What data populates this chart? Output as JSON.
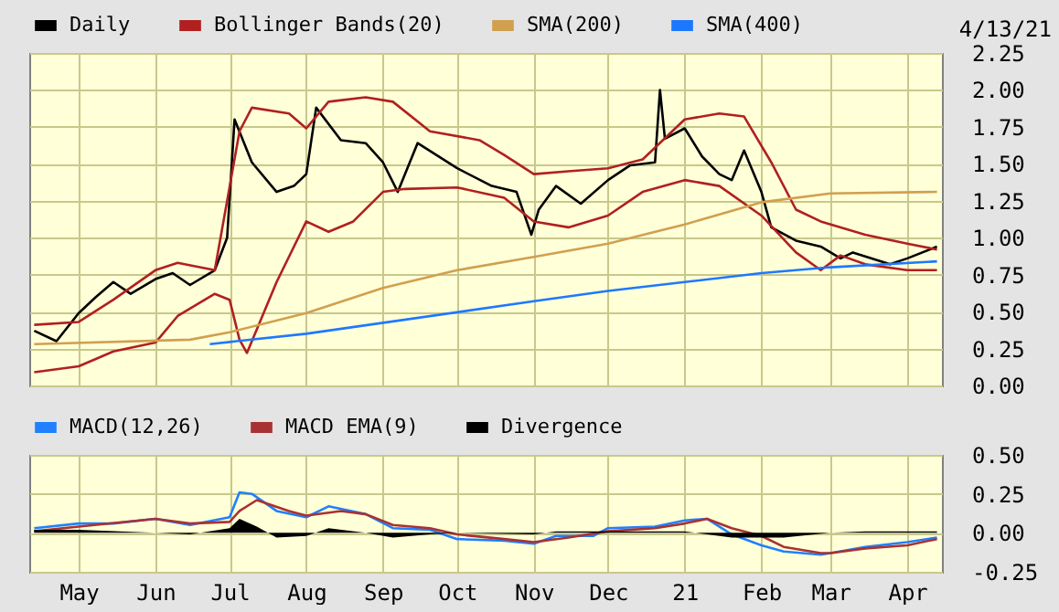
{
  "chart_data": [
    {
      "type": "line",
      "annotations": [
        "4/13/21"
      ],
      "legend": "top",
      "grid": true,
      "tick_labels": "y",
      "xlim": [
        "2020-04-11",
        "2021-04-15"
      ],
      "xticks": [
        {
          "value": "2020-05-01",
          "label": null
        },
        {
          "value": "2020-06-01",
          "label": null
        },
        {
          "value": "2020-07-01",
          "label": null
        },
        {
          "value": "2020-08-01",
          "label": null
        },
        {
          "value": "2020-09-01",
          "label": null
        },
        {
          "value": "2020-10-01",
          "label": null
        },
        {
          "value": "2020-11-01",
          "label": null
        },
        {
          "value": "2020-12-01",
          "label": null
        },
        {
          "value": "2021-01-01",
          "label": null
        },
        {
          "value": "2021-02-01",
          "label": null
        },
        {
          "value": "2021-03-01",
          "label": null
        },
        {
          "value": "2021-04-01",
          "label": null
        }
      ],
      "ylim": [
        0,
        2.25
      ],
      "yticks": [
        {
          "value": 0,
          "label": "0.00"
        },
        {
          "value": 0.25,
          "label": "0.25"
        },
        {
          "value": 0.5,
          "label": "0.50"
        },
        {
          "value": 0.75,
          "label": "0.75"
        },
        {
          "value": 1,
          "label": "1.00"
        },
        {
          "value": 1.25,
          "label": "1.25"
        },
        {
          "value": 1.5,
          "label": "1.50"
        },
        {
          "value": 1.75,
          "label": "1.75"
        },
        {
          "value": 2,
          "label": "2.00"
        },
        {
          "value": 2.25,
          "label": "2.25"
        }
      ],
      "series": [
        {
          "name": "Daily",
          "color": "#000000",
          "x": [
            "2020-04-13",
            "2020-04-22",
            "2020-05-01",
            "2020-05-08",
            "2020-05-15",
            "2020-05-22",
            "2020-06-01",
            "2020-06-08",
            "2020-06-15",
            "2020-06-25",
            "2020-06-30",
            "2020-07-03",
            "2020-07-10",
            "2020-07-20",
            "2020-07-27",
            "2020-08-01",
            "2020-08-05",
            "2020-08-15",
            "2020-08-25",
            "2020-09-01",
            "2020-09-07",
            "2020-09-15",
            "2020-10-01",
            "2020-10-15",
            "2020-10-25",
            "2020-10-31",
            "2020-11-03",
            "2020-11-10",
            "2020-11-20",
            "2020-12-01",
            "2020-12-10",
            "2020-12-20",
            "2020-12-22",
            "2020-12-24",
            "2021-01-01",
            "2021-01-08",
            "2021-01-15",
            "2021-01-20",
            "2021-01-25",
            "2021-02-01",
            "2021-02-05",
            "2021-02-15",
            "2021-02-25",
            "2021-03-05",
            "2021-03-10",
            "2021-03-25",
            "2021-04-01",
            "2021-04-13"
          ],
          "values": [
            0.37,
            0.3,
            0.49,
            0.6,
            0.7,
            0.62,
            0.72,
            0.76,
            0.68,
            0.78,
            1.0,
            1.8,
            1.51,
            1.31,
            1.35,
            1.43,
            1.88,
            1.66,
            1.64,
            1.51,
            1.31,
            1.64,
            1.47,
            1.35,
            1.31,
            1.02,
            1.19,
            1.35,
            1.23,
            1.39,
            1.49,
            1.51,
            2.0,
            1.67,
            1.74,
            1.55,
            1.43,
            1.39,
            1.59,
            1.31,
            1.07,
            0.98,
            0.94,
            0.86,
            0.9,
            0.82,
            0.86,
            0.94
          ]
        },
        {
          "name": "Bollinger Bands(20)",
          "color": "#b02020",
          "x": [
            "2020-04-13",
            "2020-05-01",
            "2020-05-15",
            "2020-06-01",
            "2020-06-10",
            "2020-06-25",
            "2020-07-05",
            "2020-07-10",
            "2020-07-25",
            "2020-08-01",
            "2020-08-10",
            "2020-08-25",
            "2020-09-05",
            "2020-09-20",
            "2020-10-10",
            "2020-10-20",
            "2020-11-01",
            "2020-11-15",
            "2020-12-01",
            "2020-12-15",
            "2021-01-01",
            "2021-01-15",
            "2021-01-25",
            "2021-02-05",
            "2021-02-15",
            "2021-02-25",
            "2021-03-15",
            "2021-04-01",
            "2021-04-13"
          ],
          "values": [
            0.41,
            0.43,
            0.58,
            0.78,
            0.83,
            0.78,
            1.72,
            1.88,
            1.84,
            1.74,
            1.92,
            1.95,
            1.92,
            1.72,
            1.66,
            1.56,
            1.43,
            1.45,
            1.47,
            1.53,
            1.8,
            1.84,
            1.82,
            1.51,
            1.19,
            1.11,
            1.02,
            0.96,
            0.92
          ]
        },
        {
          "color": "#b02020",
          "x": [
            "2020-04-13",
            "2020-05-01",
            "2020-05-15",
            "2020-06-01",
            "2020-06-10",
            "2020-06-25",
            "2020-07-01",
            "2020-07-05",
            "2020-07-08",
            "2020-07-20",
            "2020-08-01",
            "2020-08-10",
            "2020-08-20",
            "2020-09-01",
            "2020-09-10",
            "2020-10-01",
            "2020-10-20",
            "2020-11-01",
            "2020-11-15",
            "2020-12-01",
            "2020-12-15",
            "2021-01-01",
            "2021-01-15",
            "2021-02-01",
            "2021-02-15",
            "2021-02-25",
            "2021-03-05",
            "2021-03-15",
            "2021-04-01",
            "2021-04-13"
          ],
          "values": [
            0.09,
            0.13,
            0.23,
            0.29,
            0.47,
            0.62,
            0.58,
            0.31,
            0.22,
            0.7,
            1.11,
            1.04,
            1.11,
            1.31,
            1.33,
            1.34,
            1.27,
            1.11,
            1.07,
            1.15,
            1.31,
            1.39,
            1.35,
            1.15,
            0.9,
            0.78,
            0.88,
            0.82,
            0.78,
            0.78
          ]
        },
        {
          "name": "SMA(200)",
          "color": "#d0a050",
          "x": [
            "2020-04-13",
            "2020-06-15",
            "2020-07-01",
            "2020-08-01",
            "2020-09-01",
            "2020-10-01",
            "2020-11-01",
            "2020-12-01",
            "2021-01-01",
            "2021-02-01",
            "2021-03-01",
            "2021-04-13"
          ],
          "values": [
            0.28,
            0.31,
            0.36,
            0.49,
            0.66,
            0.78,
            0.87,
            0.96,
            1.09,
            1.24,
            1.3,
            1.31
          ]
        },
        {
          "name": "SMA(400)",
          "color": "#1e78ff",
          "x": [
            "2020-06-23",
            "2020-08-01",
            "2020-11-01",
            "2020-12-01",
            "2021-01-01",
            "2021-02-01",
            "2021-03-01",
            "2021-04-13"
          ],
          "values": [
            0.28,
            0.35,
            0.57,
            0.64,
            0.7,
            0.76,
            0.8,
            0.84
          ]
        }
      ]
    },
    {
      "type": "line",
      "legend": "top",
      "grid": true,
      "xlim": [
        "2020-04-11",
        "2021-04-15"
      ],
      "xticks": [
        {
          "value": "2020-05-01",
          "label": "May"
        },
        {
          "value": "2020-06-01",
          "label": "Jun"
        },
        {
          "value": "2020-07-01",
          "label": "Jul"
        },
        {
          "value": "2020-08-01",
          "label": "Aug"
        },
        {
          "value": "2020-09-01",
          "label": "Sep"
        },
        {
          "value": "2020-10-01",
          "label": "Oct"
        },
        {
          "value": "2020-11-01",
          "label": "Nov"
        },
        {
          "value": "2020-12-01",
          "label": "Dec"
        },
        {
          "value": "2021-01-01",
          "label": "21"
        },
        {
          "value": "2021-02-01",
          "label": "Feb"
        },
        {
          "value": "2021-03-01",
          "label": "Mar"
        },
        {
          "value": "2021-04-01",
          "label": "Apr"
        }
      ],
      "ylim": [
        -0.25,
        0.5
      ],
      "yticks": [
        {
          "value": -0.25,
          "label": "-0.25"
        },
        {
          "value": 0,
          "label": "0.00"
        },
        {
          "value": 0.25,
          "label": "0.25"
        },
        {
          "value": 0.5,
          "label": "0.50"
        }
      ],
      "series": [
        {
          "name": "MACD(12,26)",
          "color": "#2080ff",
          "x": [
            "2020-04-13",
            "2020-05-01",
            "2020-05-15",
            "2020-06-01",
            "2020-06-15",
            "2020-07-01",
            "2020-07-05",
            "2020-07-10",
            "2020-07-20",
            "2020-08-01",
            "2020-08-10",
            "2020-08-25",
            "2020-09-05",
            "2020-09-20",
            "2020-10-01",
            "2020-10-20",
            "2020-11-01",
            "2020-11-10",
            "2020-11-25",
            "2020-12-01",
            "2020-12-20",
            "2021-01-01",
            "2021-01-10",
            "2021-01-20",
            "2021-02-01",
            "2021-02-10",
            "2021-02-25",
            "2021-03-01",
            "2021-03-15",
            "2021-04-01",
            "2021-04-13"
          ],
          "values": [
            0.03,
            0.06,
            0.06,
            0.09,
            0.05,
            0.1,
            0.26,
            0.25,
            0.14,
            0.1,
            0.17,
            0.12,
            0.03,
            0.02,
            -0.04,
            -0.05,
            -0.07,
            -0.02,
            -0.02,
            0.03,
            0.04,
            0.08,
            0.09,
            -0.01,
            -0.08,
            -0.12,
            -0.14,
            -0.13,
            -0.09,
            -0.06,
            -0.03
          ]
        },
        {
          "name": "MACD EMA(9)",
          "color": "#a83232",
          "x": [
            "2020-04-13",
            "2020-05-01",
            "2020-06-01",
            "2020-06-15",
            "2020-07-01",
            "2020-07-05",
            "2020-07-12",
            "2020-07-25",
            "2020-08-01",
            "2020-08-15",
            "2020-08-25",
            "2020-09-05",
            "2020-09-20",
            "2020-10-01",
            "2020-10-20",
            "2020-11-01",
            "2020-11-15",
            "2020-12-01",
            "2020-12-20",
            "2021-01-01",
            "2021-01-10",
            "2021-01-20",
            "2021-02-01",
            "2021-02-10",
            "2021-02-25",
            "2021-03-01",
            "2021-03-15",
            "2021-04-01",
            "2021-04-13"
          ],
          "values": [
            0.01,
            0.04,
            0.09,
            0.06,
            0.07,
            0.14,
            0.21,
            0.14,
            0.11,
            0.14,
            0.12,
            0.05,
            0.03,
            -0.01,
            -0.04,
            -0.06,
            -0.03,
            0.01,
            0.03,
            0.06,
            0.09,
            0.03,
            -0.02,
            -0.09,
            -0.13,
            -0.13,
            -0.1,
            -0.08,
            -0.04
          ]
        },
        {
          "name": "Divergence",
          "type": "area",
          "color": "#000000",
          "x": [
            "2020-04-13",
            "2020-05-01",
            "2020-06-01",
            "2020-06-15",
            "2020-07-01",
            "2020-07-05",
            "2020-07-12",
            "2020-07-20",
            "2020-08-01",
            "2020-08-10",
            "2020-08-25",
            "2020-09-05",
            "2020-09-20",
            "2020-10-01",
            "2020-11-01",
            "2020-11-10",
            "2020-12-01",
            "2021-01-01",
            "2021-01-20",
            "2021-02-01",
            "2021-02-10",
            "2021-03-01",
            "2021-03-15",
            "2021-04-13"
          ],
          "values": [
            0.02,
            0.02,
            0,
            -0.01,
            0.03,
            0.09,
            0.04,
            -0.03,
            -0.02,
            0.03,
            0,
            -0.03,
            -0.01,
            0,
            -0.01,
            0.01,
            0.01,
            0.01,
            -0.03,
            -0.03,
            -0.03,
            0,
            0.01,
            0.01
          ]
        }
      ]
    }
  ]
}
